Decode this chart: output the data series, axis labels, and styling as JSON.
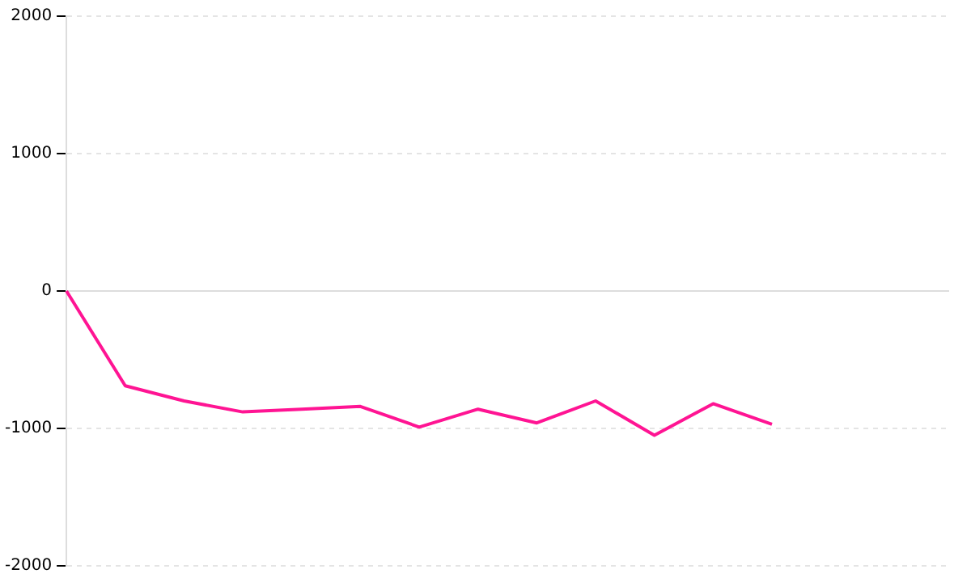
{
  "chart_data": {
    "type": "line",
    "categories": [
      null,
      null,
      null,
      null,
      null,
      null,
      null,
      null,
      null,
      null,
      null,
      null,
      null,
      null,
      null,
      null
    ],
    "series": [
      {
        "color": "#ff1493",
        "values": [
          0,
          -690,
          -800,
          -880,
          -860,
          -840,
          -990,
          -860,
          -960,
          -800,
          -1050,
          -820,
          -970,
          null,
          null,
          null
        ]
      }
    ],
    "ylim": [
      -2000,
      2000
    ],
    "yticks": [
      -2000,
      -1000,
      0,
      1000,
      2000
    ],
    "tick_labels": "y",
    "grid": "y",
    "legend": false,
    "marker": "none",
    "line_style": "solid"
  }
}
